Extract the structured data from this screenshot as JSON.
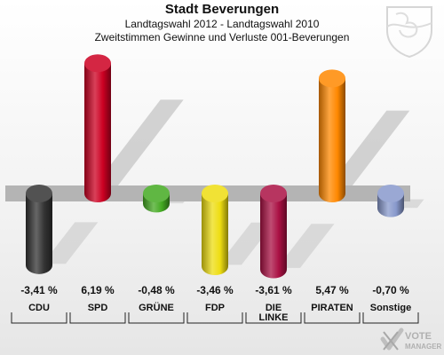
{
  "header": {
    "title": "Stadt Beverungen",
    "subtitle": "Landtagswahl 2012 - Landtagswahl 2010",
    "subtitle2": "Zweitstimmen Gewinne und Verluste 001-Beverungen"
  },
  "logo": {
    "line1": "VOTE",
    "line2": "MANAGER"
  },
  "chart_data": {
    "type": "bar",
    "title": "Stadt Beverungen",
    "categories": [
      "CDU",
      "SPD",
      "GRÜNE",
      "FDP",
      "DIE LINKE",
      "PIRATEN",
      "Sonstige"
    ],
    "values": [
      -3.41,
      6.19,
      -0.48,
      -3.46,
      -3.61,
      5.47,
      -0.7
    ],
    "value_labels": [
      "-3,41 %",
      "6,19 %",
      "-0,48 %",
      "-3,46 %",
      "-3,61 %",
      "5,47 %",
      "-0,70 %"
    ],
    "colors": [
      "#333333",
      "#cc0022",
      "#44aa22",
      "#eedd11",
      "#aa1144",
      "#ff8800",
      "#8899cc"
    ],
    "grid": false,
    "legend": "none"
  }
}
